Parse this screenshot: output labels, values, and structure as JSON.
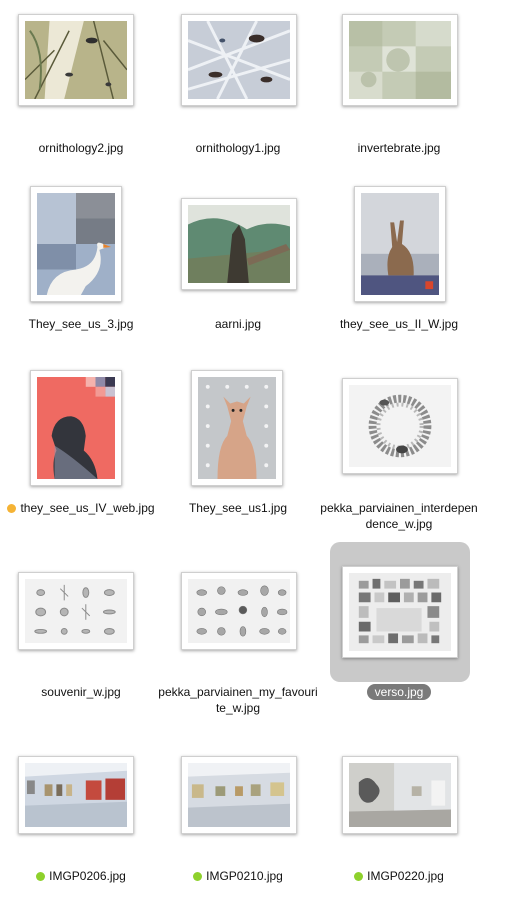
{
  "files": [
    {
      "name": "ornithology2.jpg",
      "tag": null
    },
    {
      "name": "ornithology1.jpg",
      "tag": null
    },
    {
      "name": "invertebrate.jpg",
      "tag": null
    },
    {
      "name": "They_see_us_3.jpg",
      "tag": null
    },
    {
      "name": "aarni.jpg",
      "tag": null
    },
    {
      "name": "they_see_us_II_W.jpg",
      "tag": null
    },
    {
      "name": "they_see_us_IV_web.jpg",
      "tag": "orange"
    },
    {
      "name": "They_see_us1.jpg",
      "tag": null
    },
    {
      "name": "pekka_parviainen_interdependence_w.jpg",
      "tag": null
    },
    {
      "name": "souvenir_w.jpg",
      "tag": null
    },
    {
      "name": "pekka_parviainen_my_favourite_w.jpg",
      "tag": null
    },
    {
      "name": "verso.jpg",
      "tag": null,
      "selected": true
    },
    {
      "name": "IMGP0206.jpg",
      "tag": "green"
    },
    {
      "name": "IMGP0210.jpg",
      "tag": "green"
    },
    {
      "name": "IMGP0220.jpg",
      "tag": "green"
    }
  ],
  "tag_colors": {
    "orange": "#f5b335",
    "green": "#8ed12c"
  },
  "selection_color": "#c9c9c9"
}
